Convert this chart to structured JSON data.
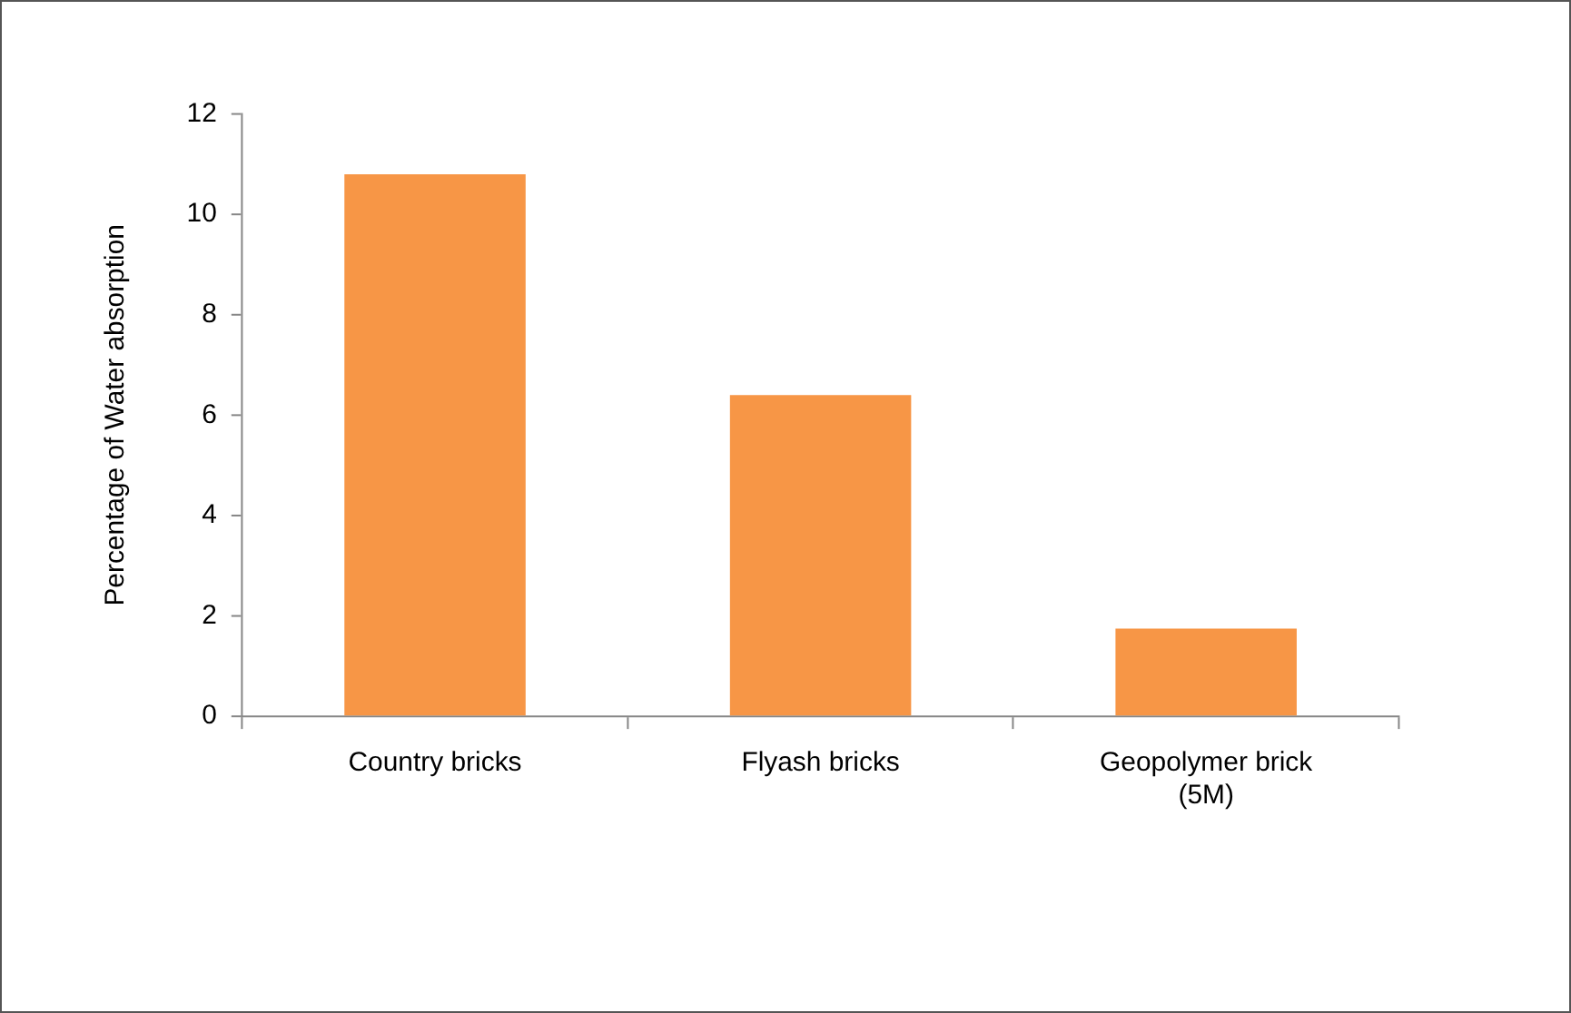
{
  "chart_data": {
    "type": "bar",
    "ylabel": "Percentage of Water absorption",
    "categories": [
      "Country bricks",
      "Flyash bricks",
      "Geopolymer brick (5M)"
    ],
    "values": [
      10.8,
      6.4,
      1.75
    ],
    "color": "#f79646",
    "ylim": [
      0,
      12
    ],
    "yticks": [
      0,
      2,
      4,
      6,
      8,
      10,
      12
    ],
    "grid": false,
    "legend": false
  }
}
